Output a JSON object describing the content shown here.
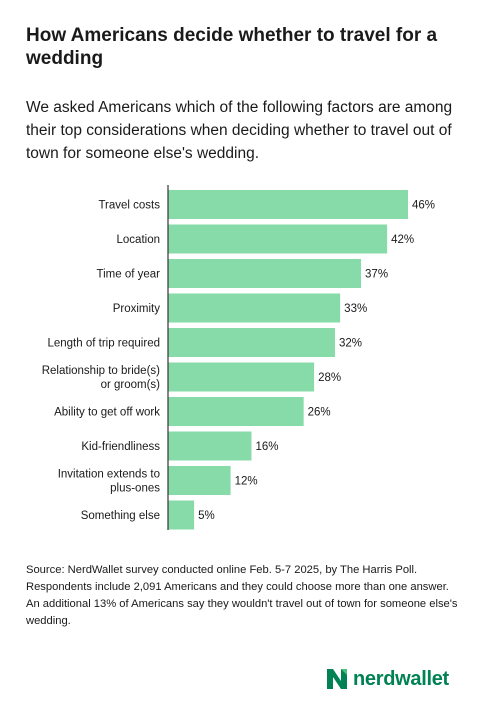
{
  "title": "How Americans decide whether to travel for a wedding",
  "subtitle": "We asked Americans which of the following factors are among their top considerations when deciding whether to travel out of town for someone else's wedding.",
  "source": "Source: NerdWallet survey conducted online Feb. 5-7 2025, by The Harris Poll. Respondents include 2,091 Americans and they could choose more than one answer. An additional 13% of Americans say they wouldn't travel out of town for someone else's wedding.",
  "logo": {
    "text": "nerdwallet",
    "color": "#008254"
  },
  "colors": {
    "bar": "#86dba9",
    "axis": "#333333"
  },
  "chart_data": {
    "type": "bar",
    "orientation": "horizontal",
    "categories": [
      [
        "Travel costs"
      ],
      [
        "Location"
      ],
      [
        "Time of year"
      ],
      [
        "Proximity"
      ],
      [
        "Length of trip required"
      ],
      [
        "Relationship to bride(s)",
        "or groom(s)"
      ],
      [
        "Ability to get off work"
      ],
      [
        "Kid-friendliness"
      ],
      [
        "Invitation extends to",
        "plus-ones"
      ],
      [
        "Something else"
      ]
    ],
    "values": [
      46,
      42,
      37,
      33,
      32,
      28,
      26,
      16,
      12,
      5
    ],
    "value_labels": [
      "46%",
      "42%",
      "37%",
      "33%",
      "32%",
      "28%",
      "26%",
      "16%",
      "12%",
      "5%"
    ],
    "unit": "%",
    "xlim": [
      0,
      46
    ],
    "grid": false,
    "legend": "none"
  }
}
